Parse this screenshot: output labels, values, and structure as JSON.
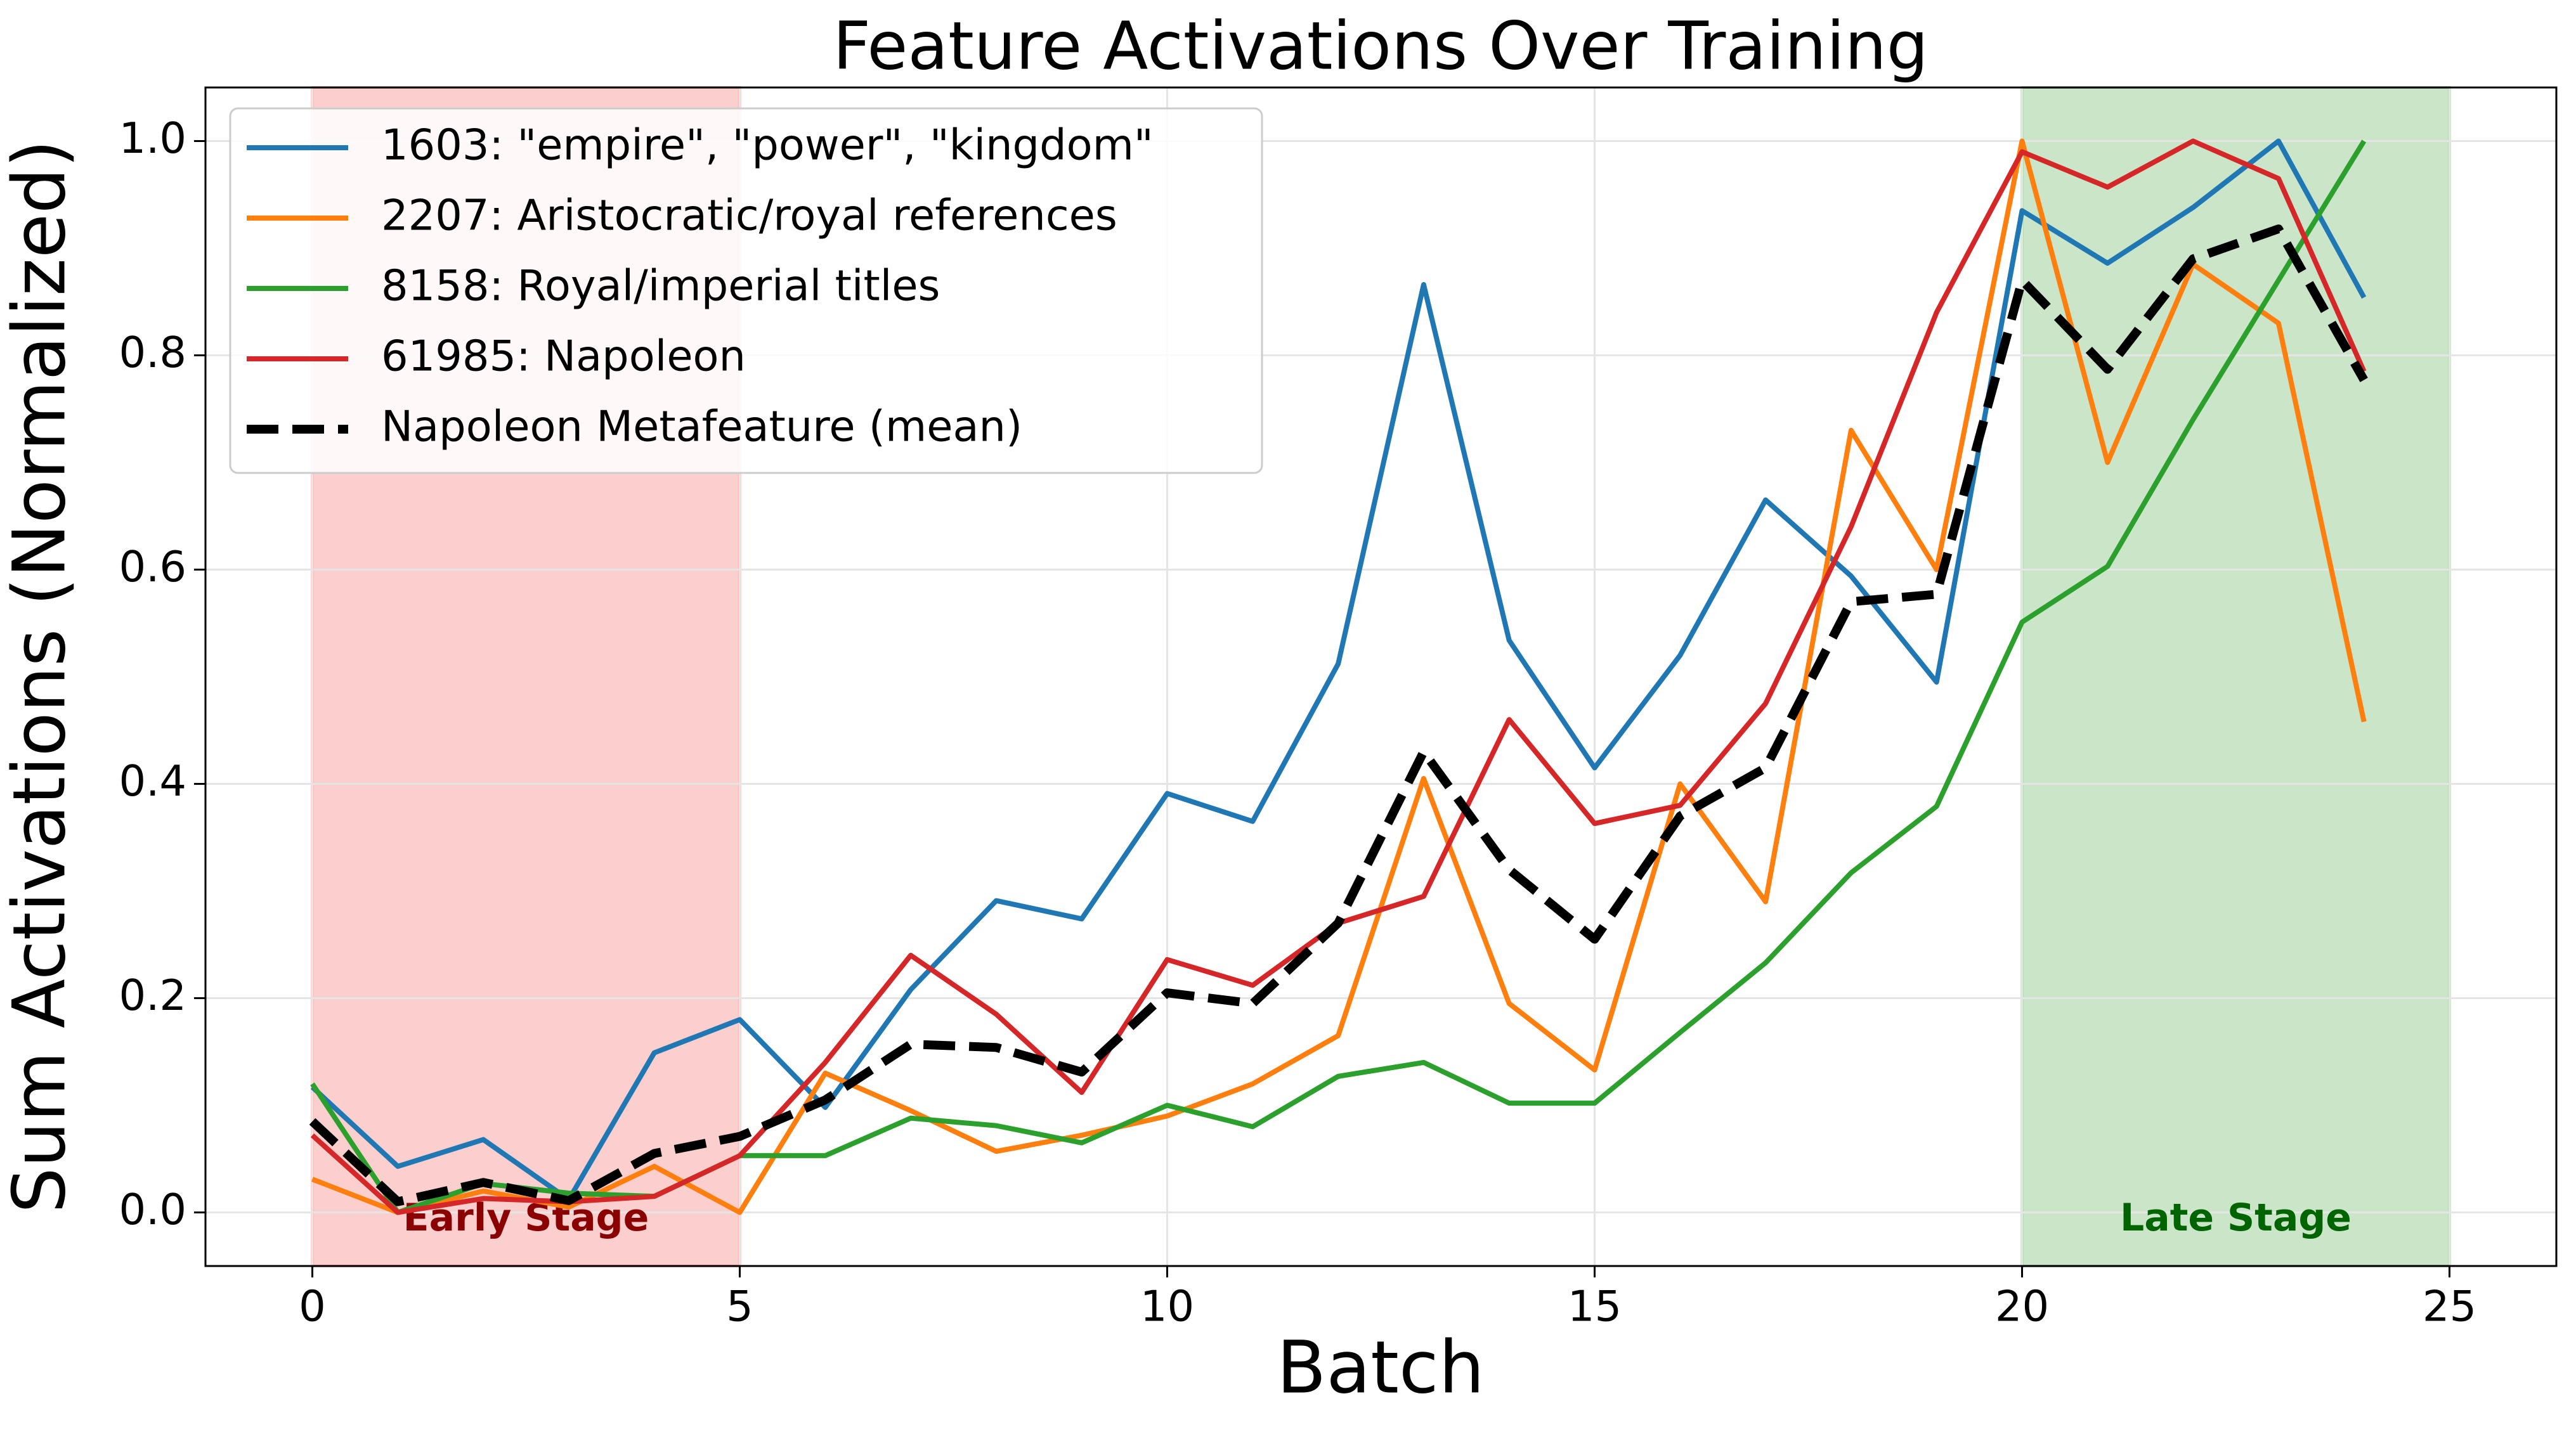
{
  "chart_data": {
    "type": "line",
    "title": "Feature Activations Over Training",
    "xlabel": "Batch",
    "ylabel": "Sum Activations (Normalized)",
    "x": [
      0,
      1,
      2,
      3,
      4,
      5,
      6,
      7,
      8,
      9,
      10,
      11,
      12,
      13,
      14,
      15,
      16,
      17,
      18,
      19,
      20,
      21,
      22,
      23,
      24
    ],
    "series": [
      {
        "name": "1603: \"empire\", \"power\", \"kingdom\"",
        "color": "#1f77b4",
        "values": [
          0.117,
          0.043,
          0.068,
          0.012,
          0.149,
          0.18,
          0.098,
          0.208,
          0.291,
          0.274,
          0.391,
          0.365,
          0.512,
          0.866,
          0.534,
          0.415,
          0.52,
          0.665,
          0.594,
          0.495,
          0.935,
          0.886,
          0.938,
          1.0,
          0.854
        ]
      },
      {
        "name": "2207: Aristocratic/royal references",
        "color": "#ff7f0e",
        "values": [
          0.031,
          0.0,
          0.02,
          0.005,
          0.043,
          0.0,
          0.13,
          0.095,
          0.057,
          0.072,
          0.09,
          0.12,
          0.165,
          0.405,
          0.195,
          0.133,
          0.4,
          0.29,
          0.73,
          0.6,
          1.0,
          0.7,
          0.885,
          0.83,
          0.458
        ]
      },
      {
        "name": "8158: Royal/imperial titles",
        "color": "#2ca02c",
        "values": [
          0.12,
          0.0,
          0.027,
          0.018,
          0.015,
          0.053,
          0.053,
          0.088,
          0.081,
          0.065,
          0.1,
          0.08,
          0.127,
          0.14,
          0.102,
          0.102,
          0.168,
          0.233,
          0.317,
          0.379,
          0.551,
          0.603,
          0.74,
          0.87,
          1.0
        ]
      },
      {
        "name": "61985: Napoleon",
        "color": "#d62728",
        "values": [
          0.072,
          0.0,
          0.013,
          0.01,
          0.015,
          0.053,
          0.14,
          0.24,
          0.185,
          0.112,
          0.236,
          0.212,
          0.27,
          0.295,
          0.46,
          0.363,
          0.38,
          0.475,
          0.64,
          0.84,
          0.99,
          0.957,
          1.0,
          0.965,
          0.785
        ]
      },
      {
        "name": "Napoleon Metafeature (mean)",
        "color": "#000000",
        "dash": true,
        "values": [
          0.085,
          0.01,
          0.028,
          0.011,
          0.055,
          0.071,
          0.105,
          0.157,
          0.154,
          0.131,
          0.205,
          0.195,
          0.27,
          0.43,
          0.32,
          0.255,
          0.37,
          0.415,
          0.57,
          0.577,
          0.87,
          0.787,
          0.89,
          0.918,
          0.777
        ]
      }
    ],
    "regions": [
      {
        "label": "Early Stage",
        "range": [
          0,
          5
        ],
        "color": "#f8a8a4",
        "label_color": "#8b0000"
      },
      {
        "label": "Late Stage",
        "range": [
          20,
          25
        ],
        "color": "#9ed09a",
        "label_color": "#006400"
      }
    ],
    "xlim": [
      -1.25,
      26.25
    ],
    "xticks": [
      0,
      5,
      10,
      15,
      20,
      25
    ],
    "ylim": [
      -0.05,
      1.05
    ],
    "yticks": [
      {
        "value": 0,
        "label": "0.0"
      },
      {
        "value": 0.2,
        "label": "0.2"
      },
      {
        "value": 0.4,
        "label": "0.4"
      },
      {
        "value": 0.6,
        "label": "0.6"
      },
      {
        "value": 0.8,
        "label": "0.8"
      },
      {
        "value": 1,
        "label": "1.0"
      }
    ],
    "grid": true,
    "legend": "upper left"
  }
}
